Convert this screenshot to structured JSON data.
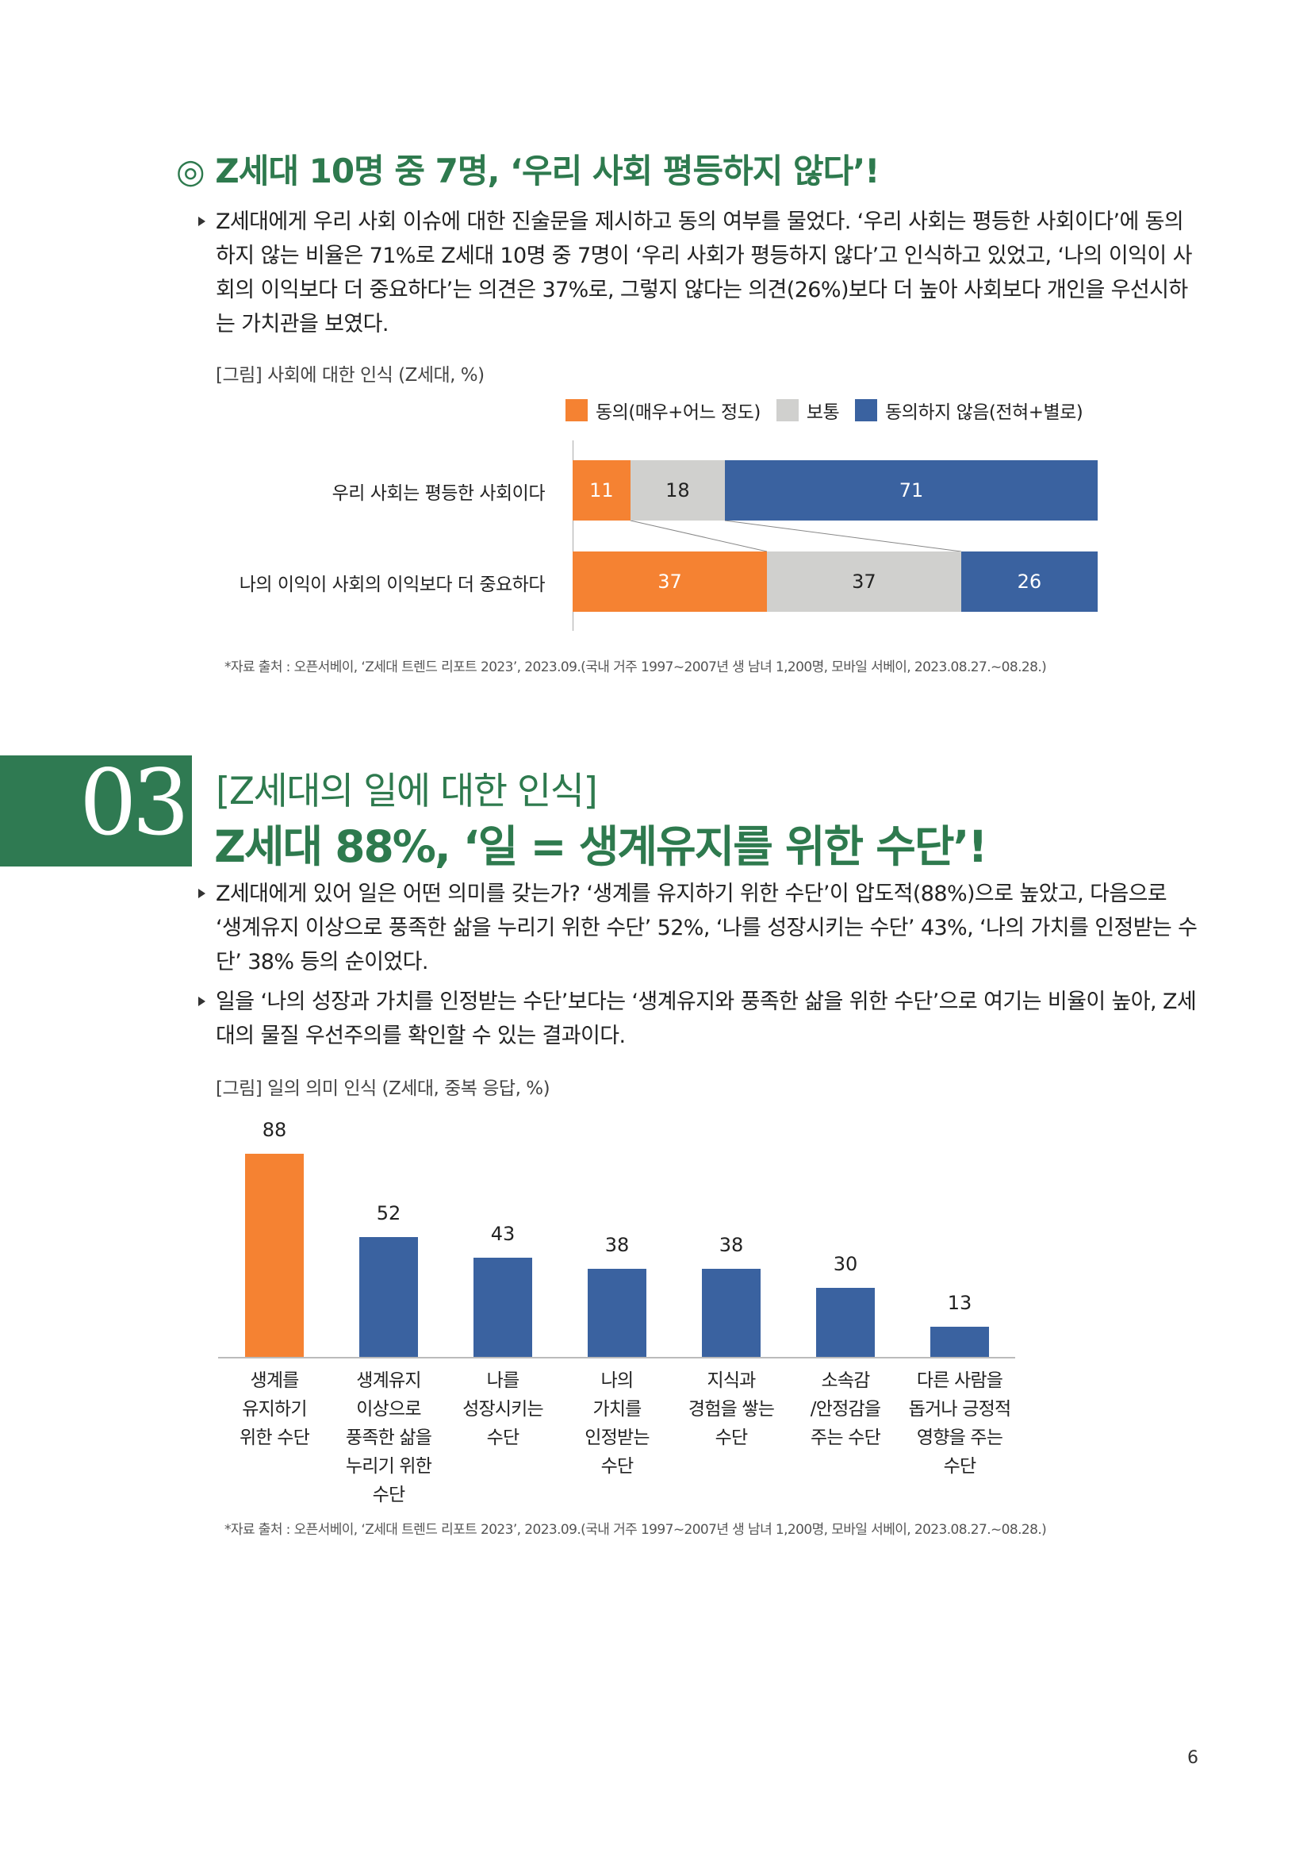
{
  "colors": {
    "brand_green": "#2e7a4e",
    "orange": "#f58232",
    "gray": "#d0d0ce",
    "blue": "#3a62a0"
  },
  "section1": {
    "title": "◎ Z세대 10명 중 7명, ‘우리 사회 평등하지 않다’!",
    "paragraph": "Z세대에게 우리 사회 이슈에 대한 진술문을 제시하고 동의 여부를 물었다. ‘우리 사회는 평등한 사회이다’에 동의하지 않는 비율은 71%로 Z세대 10명 중 7명이 ‘우리 사회가 평등하지 않다’고 인식하고 있었고, ‘나의 이익이 사회의 이익보다 더 중요하다’는 의견은 37%로, 그렇지 않다는 의견(26%)보다 더 높아 사회보다 개인을 우선시하는 가치관을 보였다.",
    "caption": "[그림] 사회에 대한 인식 (Z세대, %)",
    "source": "*자료 출처 : 오픈서베이, ‘Z세대 트렌드 리포트 2023’, 2023.09.(국내 거주 1997~2007년 생 남녀 1,200명, 모바일 서베이, 2023.08.27.~08.28.)"
  },
  "section3": {
    "number": "03",
    "subtitle": "[Z세대의 일에 대한 인식]",
    "title": "Z세대 88%, ‘일 = 생계유지를 위한 수단’!",
    "paragraph1": "Z세대에게 있어 일은 어떤 의미를 갖는가? ‘생계를 유지하기 위한 수단’이 압도적(88%)으로 높았고, 다음으로 ‘생계유지 이상으로 풍족한 삶을 누리기 위한 수단’ 52%, ‘나를 성장시키는 수단’ 43%, ‘나의 가치를 인정받는 수단’ 38% 등의 순이었다.",
    "paragraph2": "일을 ‘나의 성장과 가치를 인정받는 수단’보다는 ‘생계유지와 풍족한 삶을 위한 수단’으로 여기는 비율이 높아, Z세대의 물질 우선주의를 확인할 수 있는 결과이다.",
    "caption": "[그림] 일의 의미 인식 (Z세대, 중복 응답, %)",
    "source": "*자료 출처 : 오픈서베이, ‘Z세대 트렌드 리포트 2023’, 2023.09.(국내 거주 1997~2007년 생 남녀 1,200명, 모바일 서베이, 2023.08.27.~08.28.)"
  },
  "page_number": "6",
  "chart_data": [
    {
      "type": "bar",
      "orientation": "horizontal",
      "stacked": true,
      "categories": [
        "우리 사회는 평등한 사회이다",
        "나의 이익이 사회의 이익보다 더 중요하다"
      ],
      "series": [
        {
          "name": "동의(매우+어느 정도)",
          "values": [
            11,
            37
          ],
          "color": "#f58232"
        },
        {
          "name": "보통",
          "values": [
            18,
            37
          ],
          "color": "#d0d0ce"
        },
        {
          "name": "동의하지 않음(전혀+별로)",
          "values": [
            71,
            26
          ],
          "color": "#3a62a0"
        }
      ],
      "xlim": [
        0,
        100
      ],
      "legend": "top",
      "grid": false
    },
    {
      "type": "bar",
      "orientation": "vertical",
      "categories": [
        "생계를\n유지하기\n위한 수단",
        "생계유지\n이상으로\n풍족한 삶을\n누리기 위한\n수단",
        "나를\n성장시키는\n수단",
        "나의\n가치를\n인정받는\n수단",
        "지식과\n경험을 쌓는\n수단",
        "소속감\n/안정감을\n주는 수단",
        "다른 사람을\n돕거나 긍정적\n영향을 주는\n수단"
      ],
      "values": [
        88,
        52,
        43,
        38,
        38,
        30,
        13
      ],
      "colors": [
        "#f58232",
        "#3a62a0",
        "#3a62a0",
        "#3a62a0",
        "#3a62a0",
        "#3a62a0",
        "#3a62a0"
      ],
      "ylim": [
        0,
        100
      ],
      "grid": false
    }
  ]
}
